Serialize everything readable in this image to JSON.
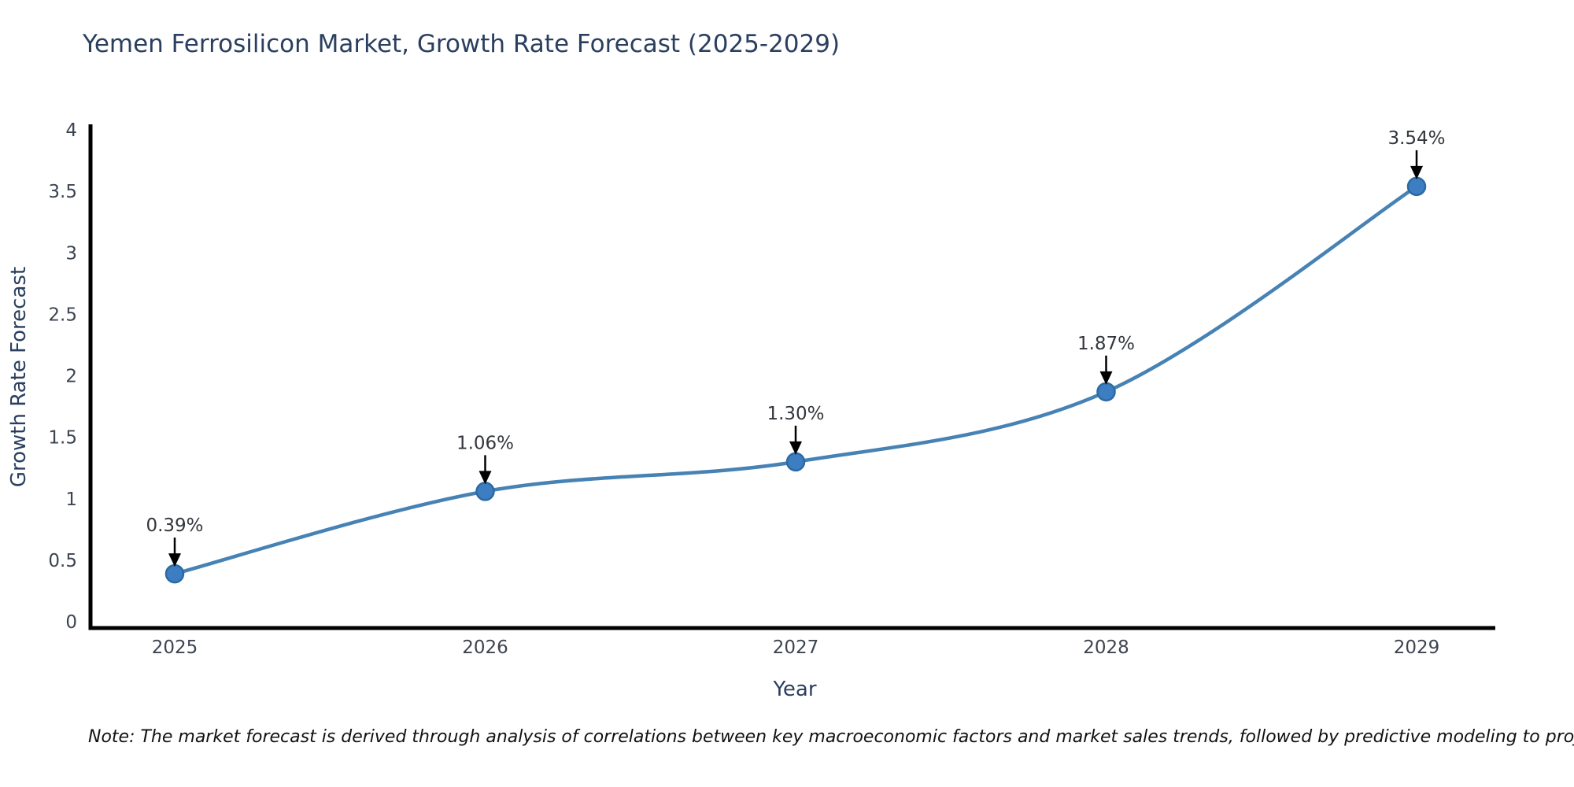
{
  "title": "Yemen Ferrosilicon Market, Growth Rate Forecast (2025-2029)",
  "note": "Note: The market forecast is derived through analysis of correlations between key macroeconomic factors and market sales trends, followed by predictive modeling to project future sales",
  "colors": {
    "line": "#4682b4",
    "marker_fill": "#3c7ec1",
    "marker_edge": "#2b6aa3",
    "title_text": "#2a3f5f",
    "tick_text": "#3d4451",
    "annotation_text": "#32363c",
    "note_text": "#111111",
    "axis_line": "#000000",
    "arrow": "#000000",
    "background": "#ffffff"
  },
  "chart_data": {
    "type": "line",
    "title": "Yemen Ferrosilicon Market, Growth Rate Forecast (2025-2029)",
    "xlabel": "Year",
    "ylabel": "Growth Rate Forecast",
    "categories": [
      "2025",
      "2026",
      "2027",
      "2028",
      "2029"
    ],
    "values": [
      0.39,
      1.06,
      1.3,
      1.87,
      3.54
    ],
    "point_labels": [
      "0.39%",
      "1.06%",
      "1.30%",
      "1.87%",
      "3.54%"
    ],
    "ylim": [
      0,
      4
    ],
    "yticks": [
      0,
      0.5,
      1,
      1.5,
      2,
      2.5,
      3,
      3.5,
      4
    ],
    "grid": false,
    "legend": "none",
    "line_shape": "spline",
    "annotation_style": "value-labels-with-down-arrows"
  }
}
